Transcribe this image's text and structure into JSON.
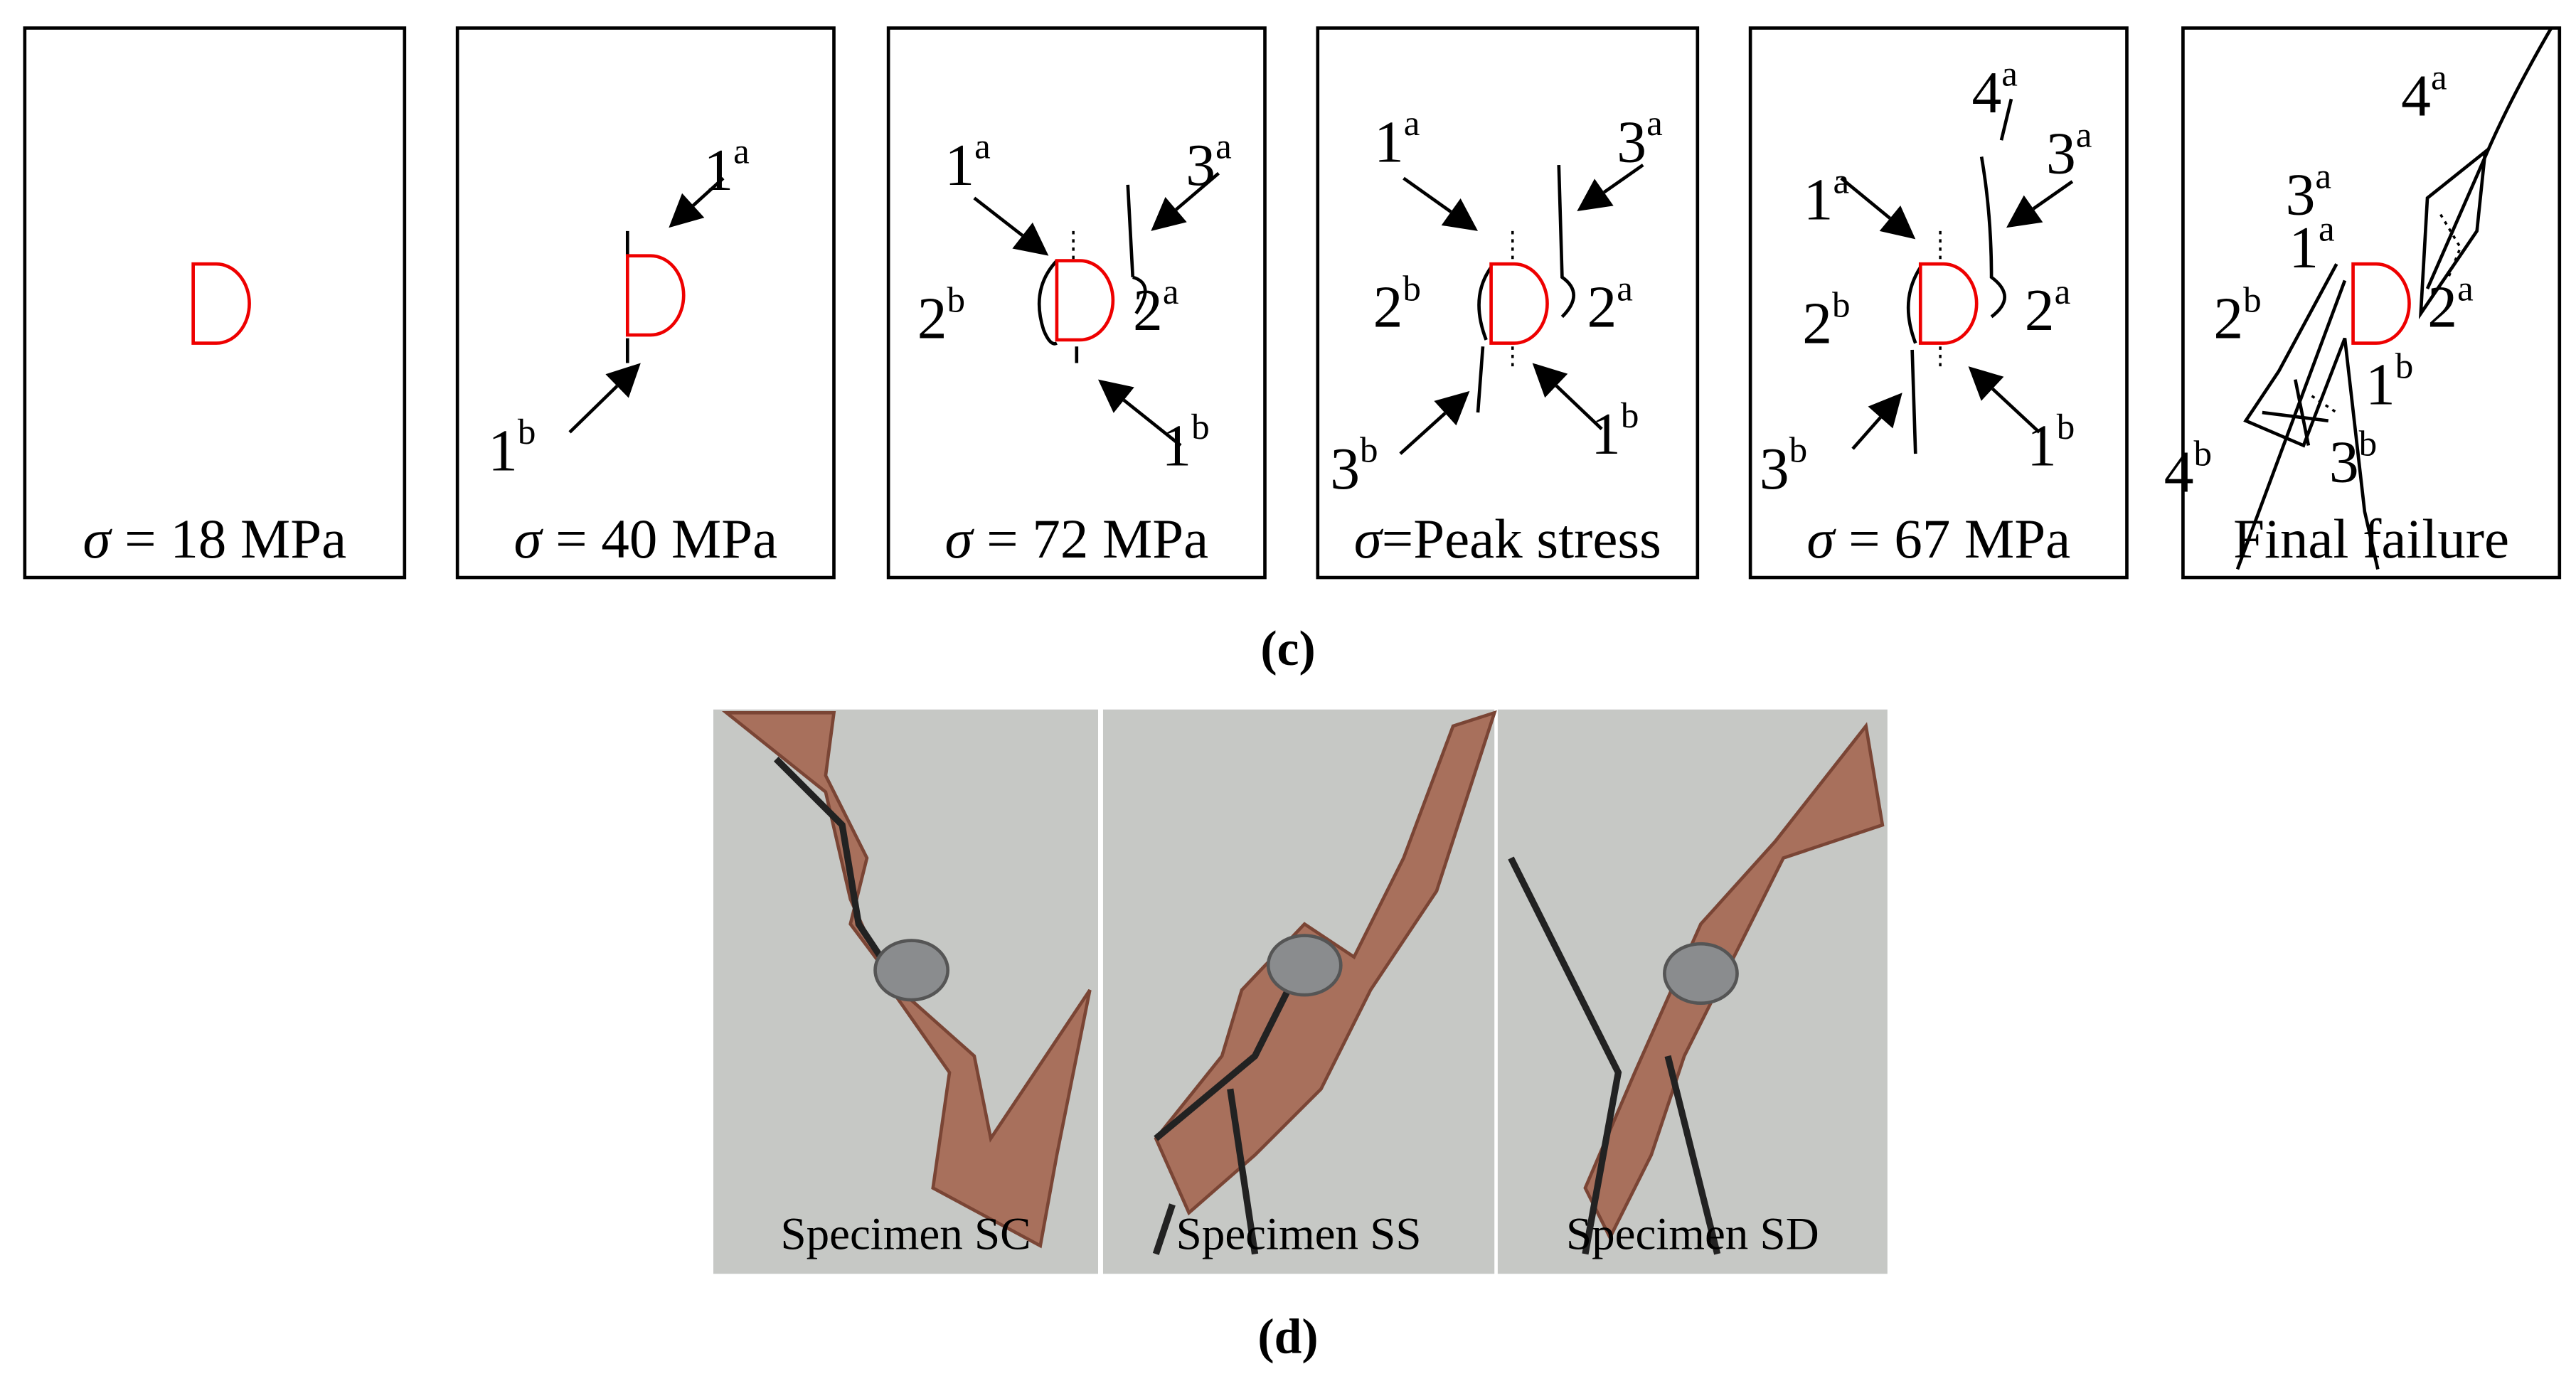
{
  "panel_c": {
    "caption": "(c)",
    "stages": [
      {
        "label": {
          "symbol": "σ",
          "text": " = 18 MPa"
        },
        "cracks": []
      },
      {
        "label": {
          "symbol": "σ",
          "text": " = 40 MPa"
        },
        "cracks": [
          {
            "num": "1",
            "sup": "a"
          },
          {
            "num": "1",
            "sup": "b"
          }
        ]
      },
      {
        "label": {
          "symbol": "σ",
          "text": " = 72 MPa"
        },
        "cracks": [
          {
            "num": "1",
            "sup": "a"
          },
          {
            "num": "3",
            "sup": "a"
          },
          {
            "num": "2",
            "sup": "b"
          },
          {
            "num": "2",
            "sup": "a"
          },
          {
            "num": "1",
            "sup": "b"
          }
        ]
      },
      {
        "label": {
          "symbol": "σ",
          "text": "=Peak stress"
        },
        "cracks": [
          {
            "num": "1",
            "sup": "a"
          },
          {
            "num": "3",
            "sup": "a"
          },
          {
            "num": "2",
            "sup": "b"
          },
          {
            "num": "2",
            "sup": "a"
          },
          {
            "num": "3",
            "sup": "b"
          },
          {
            "num": "1",
            "sup": "b"
          }
        ]
      },
      {
        "label": {
          "symbol": "σ",
          "text": " = 67 MPa"
        },
        "cracks": [
          {
            "num": "4",
            "sup": "a"
          },
          {
            "num": "3",
            "sup": "a"
          },
          {
            "num": "1",
            "sup": "a"
          },
          {
            "num": "2",
            "sup": "b"
          },
          {
            "num": "2",
            "sup": "a"
          },
          {
            "num": "3",
            "sup": "b"
          },
          {
            "num": "1",
            "sup": "b"
          }
        ]
      },
      {
        "label": {
          "text": "Final failure"
        },
        "cracks": [
          {
            "num": "4",
            "sup": "a"
          },
          {
            "num": "3",
            "sup": "a"
          },
          {
            "num": "1",
            "sup": "a"
          },
          {
            "num": "2",
            "sup": "b"
          },
          {
            "num": "2",
            "sup": "a"
          },
          {
            "num": "1",
            "sup": "b"
          },
          {
            "num": "4",
            "sup": "b"
          },
          {
            "num": "3",
            "sup": "b"
          }
        ]
      }
    ]
  },
  "panel_d": {
    "caption": "(d)",
    "photos": [
      {
        "label": "Specimen SC"
      },
      {
        "label": "Specimen SS"
      },
      {
        "label": "Specimen SD"
      }
    ]
  }
}
